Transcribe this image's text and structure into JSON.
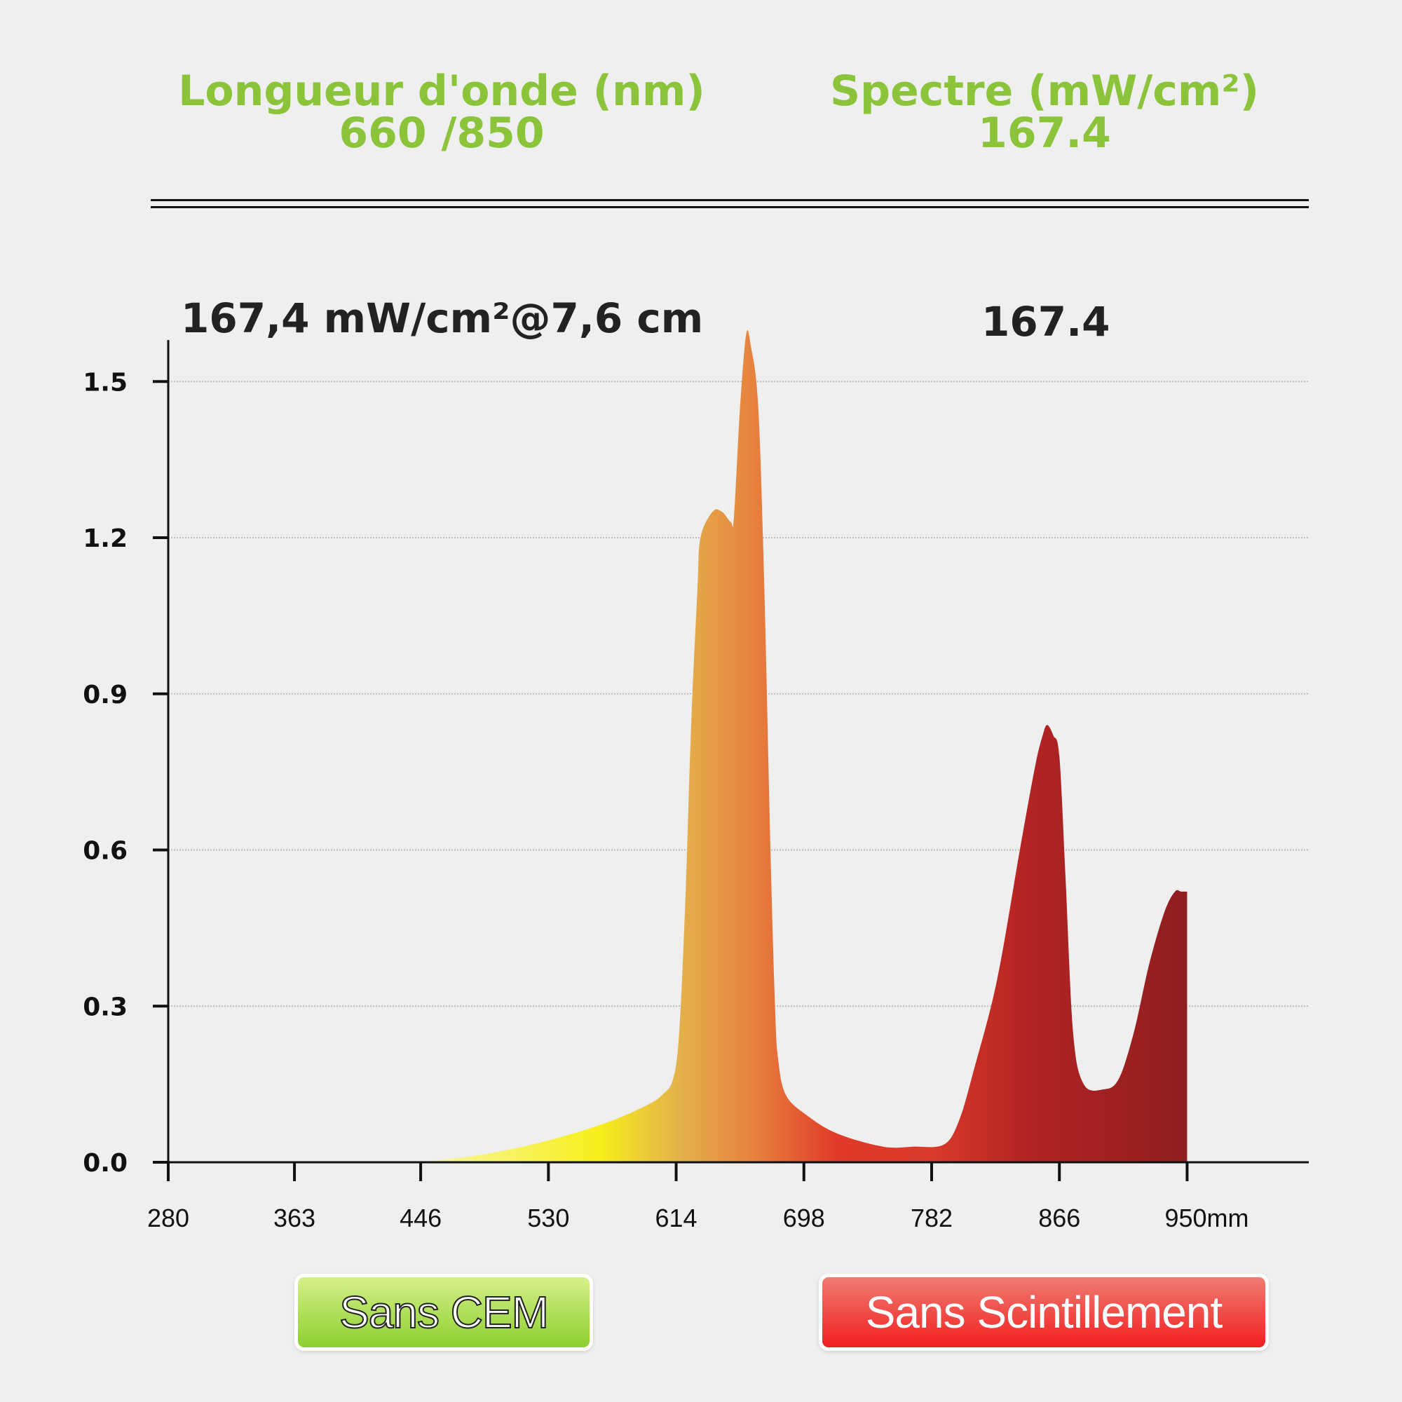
{
  "header": {
    "left": {
      "title": "Longueur d'onde (nm)",
      "value": "660 /850"
    },
    "right": {
      "title": "Spectre (mW/cm²)",
      "value": "167.4"
    }
  },
  "subheader": {
    "left": "167,4 mW/cm²@7,6 cm",
    "right": "167.4"
  },
  "badges": {
    "left": "Sans CEM",
    "right": "Sans Scintillement"
  },
  "colors": {
    "accent_green": "#8bc43a",
    "badge_red": "#f11f1f",
    "spectrum_yellow": "#f7ef1a",
    "spectrum_orange": "#e77f3e",
    "spectrum_red": "#e03a28",
    "spectrum_darkred": "#8f1e1f"
  },
  "chart_data": {
    "type": "area",
    "title": "",
    "xlabel": "",
    "ylabel": "",
    "x_ticks": [
      "280",
      "363",
      "446",
      "530",
      "614",
      "698",
      "782",
      "866",
      "950mm"
    ],
    "x_tick_values": [
      280,
      363,
      446,
      530,
      614,
      698,
      782,
      866,
      950
    ],
    "y_ticks": [
      "0.0",
      "0.3",
      "0.6",
      "0.9",
      "1.2",
      "1.5"
    ],
    "y_tick_values": [
      0.0,
      0.3,
      0.6,
      0.9,
      1.2,
      1.5
    ],
    "xlim": [
      280,
      1030
    ],
    "ylim": [
      0,
      1.6
    ],
    "grid": true,
    "series": [
      {
        "x": [
          446,
          480,
          510,
          540,
          570,
          595,
          605,
          612,
          616,
          620,
          624,
          628,
          630,
          638,
          644,
          650,
          652,
          656,
          660,
          663,
          668,
          672,
          676,
          679,
          681,
          686,
          700,
          720,
          750,
          770,
          790,
          800,
          810,
          825,
          840,
          850,
          855,
          858,
          862,
          866,
          870,
          875,
          882,
          895,
          905,
          915,
          925,
          935,
          942,
          946,
          950
        ],
        "y": [
          0.0,
          0.012,
          0.028,
          0.05,
          0.078,
          0.11,
          0.13,
          0.16,
          0.25,
          0.5,
          0.85,
          1.1,
          1.2,
          1.25,
          1.25,
          1.23,
          1.24,
          1.45,
          1.59,
          1.57,
          1.45,
          1.1,
          0.6,
          0.3,
          0.2,
          0.13,
          0.09,
          0.055,
          0.03,
          0.03,
          0.034,
          0.08,
          0.18,
          0.35,
          0.6,
          0.76,
          0.82,
          0.84,
          0.82,
          0.78,
          0.55,
          0.25,
          0.15,
          0.14,
          0.16,
          0.25,
          0.38,
          0.48,
          0.52,
          0.52,
          0.52
        ]
      }
    ]
  }
}
